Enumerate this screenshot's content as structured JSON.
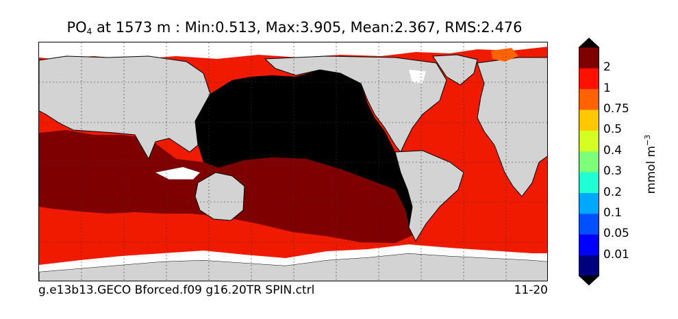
{
  "title": {
    "variable": "PO",
    "subscript": "4",
    "rest": " at 1573 m : Min:0.513, Max:3.905, Mean:2.367, RMS:2.476"
  },
  "footer": {
    "case_name": "g.e13b13.GECO Bforced.f09 g16.20TR SPIN.ctrl",
    "date_range": "11-20"
  },
  "colorbar": {
    "unit_base": "mmol m",
    "unit_exp": "−3",
    "ticks": [
      "2",
      "1",
      "0.75",
      "0.5",
      "0.4",
      "0.3",
      "0.2",
      "0.1",
      "0.05",
      "0.01"
    ],
    "colors": [
      "#00007f",
      "#0000ff",
      "#0050ff",
      "#00a8ff",
      "#1fffd5",
      "#7dff7a",
      "#d5ff22",
      "#ffc800",
      "#ff6200",
      "#ff1100",
      "#7f0000"
    ],
    "under_color": "#000000",
    "over_color": "#000000"
  },
  "map": {
    "land_color": "#d3d3d3",
    "missing_color": "#ffffff",
    "high_color": "#7f0000",
    "mid_color": "#f01a00",
    "over_color": "#000000"
  }
}
